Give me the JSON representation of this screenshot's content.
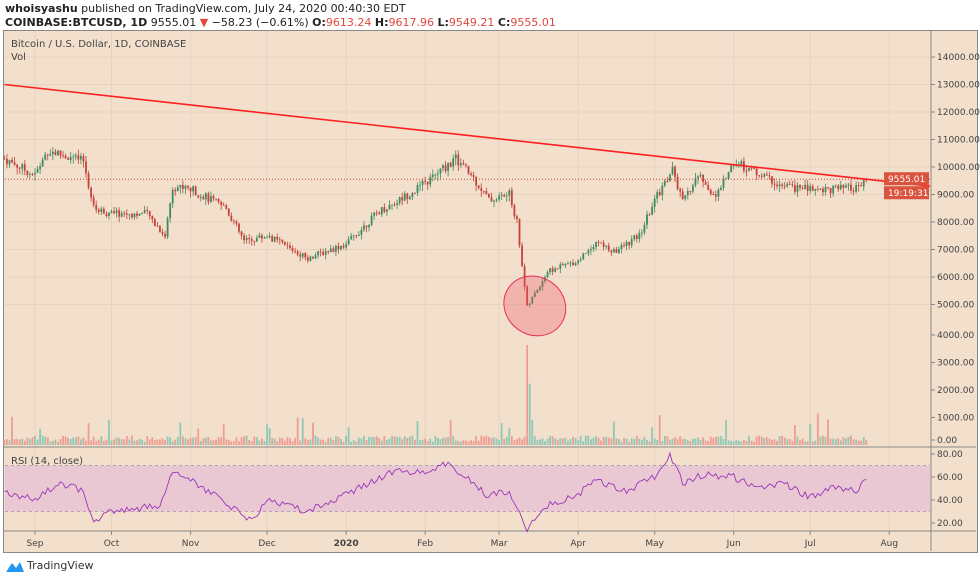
{
  "header": {
    "author": "whoisyashu",
    "published": "published on TradingView.com, July 24, 2020 00:40:30 EDT",
    "symbol": "COINBASE:BTCUSD, 1D",
    "last": "9555.01",
    "change": "−58.23 (−0.61%)",
    "o_label": "O:",
    "o": "9613.24",
    "h_label": "H:",
    "h": "9617.96",
    "l_label": "L:",
    "l": "9549.21",
    "c_label": "C:",
    "c": "9555.01"
  },
  "pane": {
    "title": "Bitcoin / U.S. Dollar, 1D, COINBASE",
    "vol_label": "Vol",
    "rsi_label": "RSI (14, close)"
  },
  "footer": {
    "brand": "TradingView"
  },
  "colors": {
    "up": "#3f8a5e",
    "down": "#c4423a",
    "vol_up": "#8fc9b5",
    "vol_down": "#ef9d92",
    "trendline": "#ff2020",
    "rsi": "#9b36b8",
    "rsi_band": "#e9c8d3",
    "background": "#f2dfcc"
  },
  "chart_data": {
    "type": "candlestick",
    "price_ticks": [
      "14000.00",
      "13000.00",
      "12000.00",
      "11000.00",
      "10000.00",
      "9000.00",
      "8000.00",
      "7000.00",
      "6000.00",
      "5000.00",
      "4000.00",
      "3000.00",
      "2000.00",
      "1000.00",
      "0.00"
    ],
    "last_price_label": "9555.01",
    "countdown_label": "19:19:31",
    "time_ticks": [
      {
        "d": "2019-09-01",
        "t": "Sep"
      },
      {
        "d": "2019-10-01",
        "t": "Oct"
      },
      {
        "d": "2019-11-01",
        "t": "Nov"
      },
      {
        "d": "2019-12-01",
        "t": "Dec"
      },
      {
        "d": "2020-01-01",
        "t": "2020"
      },
      {
        "d": "2020-02-01",
        "t": "Feb"
      },
      {
        "d": "2020-03-01",
        "t": "Mar"
      },
      {
        "d": "2020-04-01",
        "t": "Apr"
      },
      {
        "d": "2020-05-01",
        "t": "May"
      },
      {
        "d": "2020-06-01",
        "t": "Jun"
      },
      {
        "d": "2020-07-01",
        "t": "Jul"
      },
      {
        "d": "2020-08-01",
        "t": "Aug"
      }
    ],
    "close_approx": [
      [
        "2019-08-20",
        10300
      ],
      [
        "2019-09-01",
        9700
      ],
      [
        "2019-09-06",
        10600
      ],
      [
        "2019-09-20",
        10200
      ],
      [
        "2019-09-24",
        8500
      ],
      [
        "2019-10-01",
        8300
      ],
      [
        "2019-10-15",
        8300
      ],
      [
        "2019-10-22",
        7500
      ],
      [
        "2019-10-25",
        9300
      ],
      [
        "2019-11-01",
        9200
      ],
      [
        "2019-11-15",
        8500
      ],
      [
        "2019-11-22",
        7300
      ],
      [
        "2019-12-01",
        7500
      ],
      [
        "2019-12-17",
        6700
      ],
      [
        "2020-01-01",
        7200
      ],
      [
        "2020-01-14",
        8400
      ],
      [
        "2020-01-20",
        8700
      ],
      [
        "2020-02-01",
        9400
      ],
      [
        "2020-02-13",
        10300
      ],
      [
        "2020-02-20",
        9600
      ],
      [
        "2020-02-26",
        8800
      ],
      [
        "2020-03-05",
        9000
      ],
      [
        "2020-03-08",
        8000
      ],
      [
        "2020-03-12",
        4900
      ],
      [
        "2020-03-20",
        6200
      ],
      [
        "2020-04-01",
        6600
      ],
      [
        "2020-04-08",
        7300
      ],
      [
        "2020-04-15",
        6900
      ],
      [
        "2020-04-25",
        7500
      ],
      [
        "2020-05-01",
        8800
      ],
      [
        "2020-05-08",
        9900
      ],
      [
        "2020-05-12",
        8700
      ],
      [
        "2020-05-18",
        9700
      ],
      [
        "2020-05-25",
        8900
      ],
      [
        "2020-06-01",
        10200
      ],
      [
        "2020-06-10",
        9800
      ],
      [
        "2020-06-20",
        9300
      ],
      [
        "2020-07-01",
        9200
      ],
      [
        "2020-07-10",
        9200
      ],
      [
        "2020-07-20",
        9200
      ],
      [
        "2020-07-23",
        9555
      ]
    ],
    "volume_ticks": [
      "4000.00",
      "3000.00",
      "2000.00",
      "1000.00",
      "0.00"
    ],
    "rsi_ticks": [
      "80.00",
      "60.00",
      "40.00",
      "20.00"
    ],
    "rsi_band": [
      30,
      70
    ],
    "rsi_approx": [
      [
        "2019-08-20",
        47
      ],
      [
        "2019-09-01",
        40
      ],
      [
        "2019-09-10",
        55
      ],
      [
        "2019-09-20",
        48
      ],
      [
        "2019-09-24",
        22
      ],
      [
        "2019-10-01",
        30
      ],
      [
        "2019-10-20",
        35
      ],
      [
        "2019-10-25",
        65
      ],
      [
        "2019-11-01",
        58
      ],
      [
        "2019-11-25",
        22
      ],
      [
        "2019-12-01",
        40
      ],
      [
        "2019-12-17",
        30
      ],
      [
        "2020-01-01",
        45
      ],
      [
        "2020-01-20",
        65
      ],
      [
        "2020-02-01",
        65
      ],
      [
        "2020-02-10",
        72
      ],
      [
        "2020-02-25",
        45
      ],
      [
        "2020-03-05",
        48
      ],
      [
        "2020-03-12",
        15
      ],
      [
        "2020-03-20",
        35
      ],
      [
        "2020-04-01",
        45
      ],
      [
        "2020-04-08",
        57
      ],
      [
        "2020-04-20",
        48
      ],
      [
        "2020-05-01",
        60
      ],
      [
        "2020-05-07",
        80
      ],
      [
        "2020-05-12",
        55
      ],
      [
        "2020-05-20",
        62
      ],
      [
        "2020-06-01",
        60
      ],
      [
        "2020-06-10",
        50
      ],
      [
        "2020-06-20",
        55
      ],
      [
        "2020-07-01",
        42
      ],
      [
        "2020-07-10",
        52
      ],
      [
        "2020-07-20",
        48
      ],
      [
        "2020-07-23",
        60
      ]
    ],
    "trendline": [
      [
        "2019-08-20",
        13000
      ],
      [
        "2020-08-17",
        9300
      ]
    ],
    "annotation_ellipse": {
      "dates": [
        "2020-03-08",
        "2020-03-22"
      ],
      "prices": [
        3900,
        6000
      ]
    },
    "volume_spikes": [
      [
        "2020-03-12",
        3600
      ],
      [
        "2020-03-13",
        2200
      ],
      [
        "2020-03-14",
        900
      ]
    ]
  }
}
